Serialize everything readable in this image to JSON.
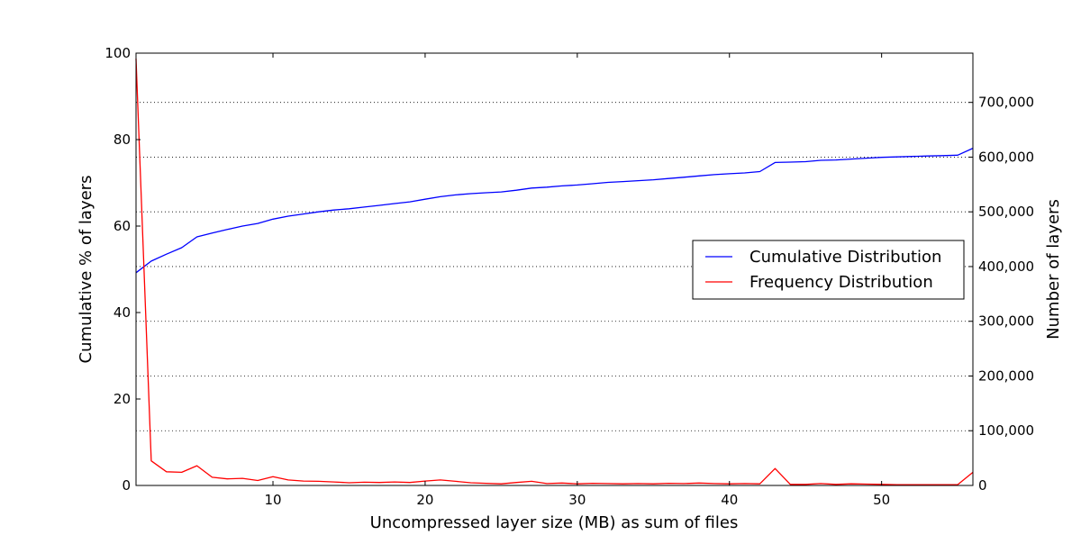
{
  "chart_data": {
    "type": "line",
    "title": "",
    "xlabel": "Uncompressed layer size (MB) as sum of files",
    "ylabel": "Cumulative % of layers",
    "y2label": "Number of layers",
    "xlim": [
      1,
      56
    ],
    "ylim": [
      0,
      100
    ],
    "y2lim": [
      0,
      790000
    ],
    "x_ticks": [
      10,
      20,
      30,
      40,
      50
    ],
    "x_tick_labels": [
      "10",
      "20",
      "30",
      "40",
      "50"
    ],
    "y_ticks": [
      0,
      20,
      40,
      60,
      80,
      100
    ],
    "y_tick_labels": [
      "0",
      "20",
      "40",
      "60",
      "80",
      "100"
    ],
    "y2_ticks": [
      0,
      100000,
      200000,
      300000,
      400000,
      500000,
      600000,
      700000
    ],
    "y2_tick_labels": [
      "0",
      "100,000",
      "200,000",
      "300,000",
      "400,000",
      "500,000",
      "600,000",
      "700,000"
    ],
    "grid": "horizontal dotted at right-axis ticks",
    "legend_position": "center-right",
    "x": [
      1,
      2,
      3,
      4,
      5,
      6,
      7,
      8,
      9,
      10,
      11,
      12,
      13,
      14,
      15,
      16,
      17,
      18,
      19,
      20,
      21,
      22,
      23,
      24,
      25,
      26,
      27,
      28,
      29,
      30,
      31,
      32,
      33,
      34,
      35,
      36,
      37,
      38,
      39,
      40,
      41,
      42,
      43,
      44,
      45,
      46,
      47,
      48,
      49,
      50,
      51,
      52,
      53,
      54,
      55,
      56
    ],
    "series": [
      {
        "name": "Cumulative Distribution",
        "axis": "left",
        "color": "#0000ff",
        "values": [
          49.2,
          51.9,
          53.5,
          55.0,
          57.5,
          58.4,
          59.2,
          60.0,
          60.6,
          61.6,
          62.3,
          62.8,
          63.3,
          63.7,
          64.0,
          64.4,
          64.8,
          65.2,
          65.6,
          66.2,
          66.8,
          67.2,
          67.5,
          67.7,
          67.9,
          68.3,
          68.8,
          69.0,
          69.3,
          69.5,
          69.8,
          70.1,
          70.3,
          70.5,
          70.7,
          71.0,
          71.3,
          71.6,
          71.9,
          72.1,
          72.3,
          72.6,
          74.7,
          74.8,
          74.9,
          75.2,
          75.3,
          75.5,
          75.7,
          75.9,
          76.0,
          76.1,
          76.2,
          76.3,
          76.4,
          78.0
        ]
      },
      {
        "name": "Frequency Distribution",
        "axis": "right",
        "color": "#ff0000",
        "values": [
          780000,
          45000,
          25000,
          24000,
          36000,
          15000,
          12000,
          13000,
          9000,
          16000,
          10000,
          8000,
          7500,
          6500,
          5000,
          6000,
          5500,
          6500,
          5500,
          8000,
          10000,
          7500,
          5000,
          4000,
          3000,
          5500,
          7500,
          3500,
          4500,
          3000,
          4000,
          3500,
          3000,
          3500,
          3000,
          4000,
          3500,
          4500,
          3500,
          3000,
          3500,
          3000,
          31000,
          2000,
          2000,
          3500,
          2000,
          3000,
          2500,
          2000,
          1500,
          1500,
          1500,
          1500,
          1500,
          24000
        ]
      }
    ]
  }
}
